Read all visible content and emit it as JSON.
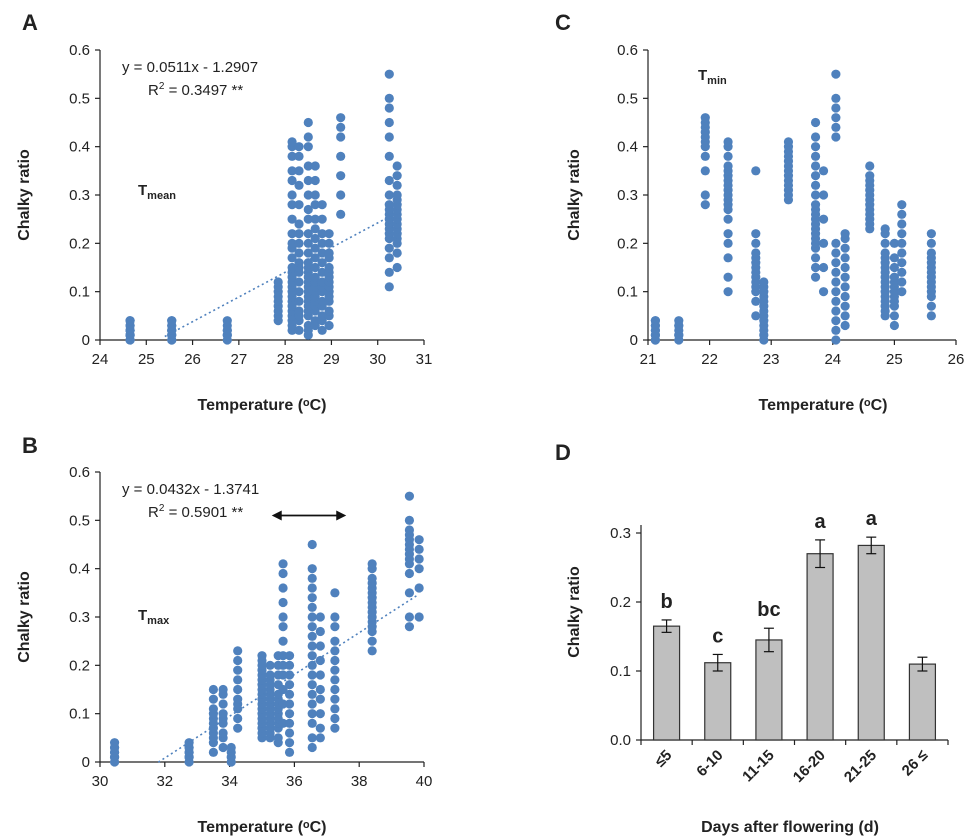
{
  "colors": {
    "points": "#4f81bd",
    "bars": "#bfbfbf",
    "bar_edge": "#333333",
    "axis": "#222222"
  },
  "chart_data": [
    {
      "id": "A",
      "panel_label": "A",
      "type": "scatter",
      "xlabel": "Temperature (ᵒC)",
      "ylabel": "Chalky ratio",
      "xlim": [
        24,
        31
      ],
      "ylim": [
        0,
        0.6
      ],
      "xticks": [
        24,
        25,
        26,
        27,
        28,
        29,
        30,
        31
      ],
      "xtick_labels": [
        "24",
        "25",
        "26",
        "27",
        "28",
        "29",
        "30",
        "31"
      ],
      "yticks": [
        0,
        0.1,
        0.2,
        0.3,
        0.4,
        0.5,
        0.6
      ],
      "ytick_labels": [
        "0",
        "0.1",
        "0.2",
        "0.3",
        "0.4",
        "0.5",
        "0.6"
      ],
      "equation": "y = 0.0511x - 1.2907",
      "r2_prefix": "R",
      "r2_sup": "2",
      "r2_value": " = 0.3497 **",
      "annotation_main": "T",
      "annotation_sub": "mean",
      "trendline": {
        "slope": 0.0511,
        "intercept": -1.2907,
        "x_range": [
          25.4,
          30.4
        ]
      },
      "columns": [
        {
          "x": 24.65,
          "y": [
            0.0,
            0.0,
            0.01,
            0.01,
            0.01,
            0.02,
            0.02,
            0.02,
            0.03,
            0.03,
            0.04,
            0.04
          ]
        },
        {
          "x": 25.55,
          "y": [
            0.0,
            0.0,
            0.01,
            0.01,
            0.02,
            0.02,
            0.02,
            0.03,
            0.03,
            0.04,
            0.04
          ]
        },
        {
          "x": 26.75,
          "y": [
            0.0,
            0.01,
            0.01,
            0.02,
            0.02,
            0.03,
            0.04
          ]
        },
        {
          "x": 27.85,
          "y": [
            0.04,
            0.05,
            0.06,
            0.07,
            0.08,
            0.09,
            0.1,
            0.11,
            0.12
          ]
        },
        {
          "x": 28.15,
          "y": [
            0.02,
            0.03,
            0.04,
            0.05,
            0.06,
            0.07,
            0.08,
            0.09,
            0.1,
            0.11,
            0.12,
            0.13,
            0.14,
            0.15,
            0.17,
            0.19,
            0.2,
            0.22,
            0.25,
            0.28,
            0.3,
            0.33,
            0.35,
            0.38,
            0.4,
            0.41
          ]
        },
        {
          "x": 28.3,
          "y": [
            0.02,
            0.04,
            0.05,
            0.06,
            0.08,
            0.1,
            0.12,
            0.14,
            0.15,
            0.16,
            0.18,
            0.2,
            0.22,
            0.24,
            0.28,
            0.32,
            0.35,
            0.38,
            0.4
          ]
        },
        {
          "x": 28.5,
          "y": [
            0.01,
            0.02,
            0.03,
            0.05,
            0.06,
            0.07,
            0.08,
            0.09,
            0.1,
            0.11,
            0.12,
            0.13,
            0.14,
            0.15,
            0.16,
            0.18,
            0.2,
            0.22,
            0.25,
            0.27,
            0.3,
            0.33,
            0.36,
            0.4,
            0.42,
            0.45
          ]
        },
        {
          "x": 28.65,
          "y": [
            0.03,
            0.04,
            0.06,
            0.07,
            0.08,
            0.09,
            0.1,
            0.11,
            0.12,
            0.13,
            0.15,
            0.17,
            0.19,
            0.21,
            0.23,
            0.25,
            0.28,
            0.3,
            0.33,
            0.36
          ]
        },
        {
          "x": 28.8,
          "y": [
            0.02,
            0.04,
            0.05,
            0.07,
            0.08,
            0.1,
            0.11,
            0.12,
            0.14,
            0.16,
            0.18,
            0.2,
            0.22,
            0.25,
            0.28
          ]
        },
        {
          "x": 28.95,
          "y": [
            0.03,
            0.05,
            0.06,
            0.08,
            0.09,
            0.1,
            0.11,
            0.12,
            0.13,
            0.14,
            0.15,
            0.17,
            0.18,
            0.2,
            0.22
          ]
        },
        {
          "x": 29.2,
          "y": [
            0.26,
            0.3,
            0.34,
            0.38,
            0.42,
            0.44,
            0.46
          ]
        },
        {
          "x": 30.25,
          "y": [
            0.11,
            0.14,
            0.17,
            0.19,
            0.21,
            0.22,
            0.23,
            0.24,
            0.25,
            0.26,
            0.27,
            0.28,
            0.3,
            0.33,
            0.38,
            0.42,
            0.45,
            0.48,
            0.5,
            0.55
          ]
        },
        {
          "x": 30.42,
          "y": [
            0.15,
            0.18,
            0.2,
            0.21,
            0.22,
            0.23,
            0.24,
            0.25,
            0.26,
            0.27,
            0.28,
            0.29,
            0.3,
            0.32,
            0.34,
            0.36
          ]
        }
      ]
    },
    {
      "id": "B",
      "panel_label": "B",
      "type": "scatter",
      "xlabel": "Temperature (ᵒC)",
      "ylabel": "Chalky ratio",
      "xlim": [
        30,
        40
      ],
      "ylim": [
        0,
        0.6
      ],
      "xticks": [
        30,
        32,
        34,
        36,
        38,
        40
      ],
      "xtick_labels": [
        "30",
        "32",
        "34",
        "36",
        "38",
        "40"
      ],
      "yticks": [
        0,
        0.1,
        0.2,
        0.3,
        0.4,
        0.5,
        0.6
      ],
      "ytick_labels": [
        "0",
        "0.1",
        "0.2",
        "0.3",
        "0.4",
        "0.5",
        "0.6"
      ],
      "equation": "y = 0.0432x - 1.3741",
      "r2_prefix": "R",
      "r2_sup": "2",
      "r2_value": " = 0.5901 **",
      "annotation_main": "T",
      "annotation_sub": "max",
      "arrow_range": [
        35.3,
        37.6
      ],
      "arrow_y": 0.51,
      "trendline": {
        "slope": 0.0432,
        "intercept": -1.3741,
        "x_range": [
          31.8,
          39.8
        ]
      },
      "columns": [
        {
          "x": 30.45,
          "y": [
            0.0,
            0.01,
            0.01,
            0.02,
            0.02,
            0.03,
            0.03,
            0.04
          ]
        },
        {
          "x": 32.75,
          "y": [
            0.0,
            0.01,
            0.01,
            0.02,
            0.02,
            0.03,
            0.03,
            0.04
          ]
        },
        {
          "x": 33.5,
          "y": [
            0.02,
            0.04,
            0.05,
            0.06,
            0.07,
            0.08,
            0.09,
            0.1,
            0.11,
            0.13,
            0.15
          ]
        },
        {
          "x": 33.8,
          "y": [
            0.03,
            0.05,
            0.06,
            0.08,
            0.09,
            0.1,
            0.12,
            0.14,
            0.15
          ]
        },
        {
          "x": 34.05,
          "y": [
            0.0,
            0.01,
            0.02,
            0.03
          ]
        },
        {
          "x": 34.25,
          "y": [
            0.07,
            0.09,
            0.11,
            0.12,
            0.13,
            0.15,
            0.17,
            0.19,
            0.21,
            0.23
          ]
        },
        {
          "x": 35.0,
          "y": [
            0.05,
            0.06,
            0.07,
            0.08,
            0.09,
            0.1,
            0.11,
            0.12,
            0.13,
            0.14,
            0.15,
            0.16,
            0.17,
            0.18,
            0.19,
            0.2,
            0.21,
            0.22
          ]
        },
        {
          "x": 35.25,
          "y": [
            0.05,
            0.06,
            0.07,
            0.08,
            0.09,
            0.1,
            0.11,
            0.12,
            0.13,
            0.14,
            0.15,
            0.16,
            0.17,
            0.18,
            0.2
          ]
        },
        {
          "x": 35.5,
          "y": [
            0.04,
            0.05,
            0.07,
            0.08,
            0.09,
            0.1,
            0.11,
            0.12,
            0.13,
            0.14,
            0.16,
            0.18,
            0.2,
            0.22
          ]
        },
        {
          "x": 35.65,
          "y": [
            0.08,
            0.12,
            0.15,
            0.18,
            0.2,
            0.22,
            0.25,
            0.28,
            0.3,
            0.33,
            0.36,
            0.39,
            0.41
          ]
        },
        {
          "x": 35.85,
          "y": [
            0.02,
            0.04,
            0.06,
            0.08,
            0.1,
            0.12,
            0.14,
            0.16,
            0.18,
            0.2,
            0.22
          ]
        },
        {
          "x": 36.55,
          "y": [
            0.03,
            0.05,
            0.08,
            0.1,
            0.12,
            0.14,
            0.16,
            0.18,
            0.2,
            0.22,
            0.24,
            0.26,
            0.28,
            0.3,
            0.32,
            0.34,
            0.36,
            0.38,
            0.4,
            0.45
          ]
        },
        {
          "x": 36.8,
          "y": [
            0.05,
            0.07,
            0.1,
            0.13,
            0.15,
            0.18,
            0.21,
            0.24,
            0.27,
            0.3
          ]
        },
        {
          "x": 37.25,
          "y": [
            0.07,
            0.09,
            0.11,
            0.13,
            0.15,
            0.17,
            0.19,
            0.21,
            0.23,
            0.25,
            0.28,
            0.3,
            0.35
          ]
        },
        {
          "x": 38.4,
          "y": [
            0.23,
            0.25,
            0.27,
            0.28,
            0.29,
            0.3,
            0.31,
            0.32,
            0.33,
            0.34,
            0.35,
            0.36,
            0.37,
            0.38,
            0.4,
            0.41
          ]
        },
        {
          "x": 39.55,
          "y": [
            0.28,
            0.3,
            0.35,
            0.39,
            0.41,
            0.42,
            0.43,
            0.44,
            0.45,
            0.46,
            0.47,
            0.48,
            0.5,
            0.55
          ]
        },
        {
          "x": 39.85,
          "y": [
            0.3,
            0.36,
            0.4,
            0.42,
            0.44,
            0.46
          ]
        }
      ]
    },
    {
      "id": "C",
      "panel_label": "C",
      "type": "scatter",
      "xlabel": "Temperature (ᵒC)",
      "ylabel": "Chalky ratio",
      "xlim": [
        21,
        26
      ],
      "ylim": [
        0,
        0.6
      ],
      "xticks": [
        21,
        22,
        23,
        24,
        25,
        26
      ],
      "xtick_labels": [
        "21",
        "22",
        "23",
        "24",
        "25",
        "26"
      ],
      "yticks": [
        0,
        0.1,
        0.2,
        0.3,
        0.4,
        0.5,
        0.6
      ],
      "ytick_labels": [
        "0",
        "0.1",
        "0.2",
        "0.3",
        "0.4",
        "0.5",
        "0.6"
      ],
      "annotation_main": "T",
      "annotation_sub": "min",
      "columns": [
        {
          "x": 21.12,
          "y": [
            0.0,
            0.0,
            0.01,
            0.01,
            0.02,
            0.02,
            0.03,
            0.03,
            0.04,
            0.04
          ]
        },
        {
          "x": 21.5,
          "y": [
            0.0,
            0.01,
            0.01,
            0.02,
            0.03,
            0.03,
            0.04
          ]
        },
        {
          "x": 21.93,
          "y": [
            0.28,
            0.3,
            0.35,
            0.38,
            0.4,
            0.41,
            0.42,
            0.43,
            0.44,
            0.45,
            0.46
          ]
        },
        {
          "x": 22.3,
          "y": [
            0.1,
            0.13,
            0.17,
            0.2,
            0.22,
            0.25,
            0.27,
            0.28,
            0.29,
            0.3,
            0.31,
            0.32,
            0.33,
            0.34,
            0.35,
            0.36,
            0.38,
            0.4,
            0.41
          ]
        },
        {
          "x": 22.75,
          "y": [
            0.05,
            0.08,
            0.1,
            0.11,
            0.12,
            0.13,
            0.14,
            0.15,
            0.16,
            0.17,
            0.18,
            0.2,
            0.22,
            0.35
          ]
        },
        {
          "x": 22.88,
          "y": [
            0.0,
            0.01,
            0.02,
            0.03,
            0.04,
            0.05,
            0.06,
            0.07,
            0.08,
            0.09,
            0.1,
            0.11,
            0.12
          ]
        },
        {
          "x": 23.28,
          "y": [
            0.29,
            0.3,
            0.31,
            0.32,
            0.33,
            0.34,
            0.35,
            0.36,
            0.37,
            0.38,
            0.39,
            0.4,
            0.41
          ]
        },
        {
          "x": 23.72,
          "y": [
            0.13,
            0.15,
            0.17,
            0.19,
            0.2,
            0.21,
            0.22,
            0.23,
            0.24,
            0.25,
            0.26,
            0.27,
            0.28,
            0.3,
            0.32,
            0.34,
            0.36,
            0.38,
            0.4,
            0.42,
            0.45
          ]
        },
        {
          "x": 23.85,
          "y": [
            0.1,
            0.15,
            0.2,
            0.25,
            0.3,
            0.35
          ]
        },
        {
          "x": 24.05,
          "y": [
            0.0,
            0.02,
            0.04,
            0.06,
            0.08,
            0.1,
            0.12,
            0.14,
            0.16,
            0.18,
            0.2,
            0.42,
            0.44,
            0.46,
            0.48,
            0.5,
            0.55
          ]
        },
        {
          "x": 24.2,
          "y": [
            0.03,
            0.05,
            0.07,
            0.09,
            0.11,
            0.13,
            0.15,
            0.17,
            0.19,
            0.21,
            0.22
          ]
        },
        {
          "x": 24.6,
          "y": [
            0.23,
            0.24,
            0.25,
            0.26,
            0.27,
            0.28,
            0.29,
            0.3,
            0.31,
            0.32,
            0.33,
            0.34,
            0.36
          ]
        },
        {
          "x": 24.85,
          "y": [
            0.05,
            0.06,
            0.07,
            0.08,
            0.09,
            0.1,
            0.11,
            0.12,
            0.13,
            0.14,
            0.15,
            0.16,
            0.17,
            0.18,
            0.2,
            0.22,
            0.23
          ]
        },
        {
          "x": 25.0,
          "y": [
            0.03,
            0.05,
            0.07,
            0.08,
            0.09,
            0.1,
            0.11,
            0.12,
            0.13,
            0.15,
            0.17,
            0.2
          ]
        },
        {
          "x": 25.12,
          "y": [
            0.1,
            0.12,
            0.14,
            0.16,
            0.18,
            0.2,
            0.22,
            0.24,
            0.26,
            0.28
          ]
        },
        {
          "x": 25.6,
          "y": [
            0.05,
            0.07,
            0.09,
            0.1,
            0.11,
            0.12,
            0.13,
            0.14,
            0.15,
            0.16,
            0.17,
            0.18,
            0.2,
            0.22
          ]
        }
      ]
    },
    {
      "id": "D",
      "panel_label": "D",
      "type": "bar",
      "xlabel": "Days after flowering (d)",
      "ylabel": "Chalky ratio",
      "ylim": [
        0,
        0.3
      ],
      "yticks": [
        0,
        0.1,
        0.2,
        0.3
      ],
      "ytick_labels": [
        "0.0",
        "0.1",
        "0.2",
        "0.3"
      ],
      "categories": [
        "≤5",
        "6-10",
        "11-15",
        "16-20",
        "21-25",
        "26 ≤"
      ],
      "values": [
        0.165,
        0.112,
        0.145,
        0.27,
        0.282,
        0.11
      ],
      "errors": [
        0.009,
        0.012,
        0.017,
        0.02,
        0.012,
        0.01
      ],
      "significance_letters": [
        "b",
        "c",
        "bc",
        "a",
        "a",
        ""
      ]
    }
  ]
}
